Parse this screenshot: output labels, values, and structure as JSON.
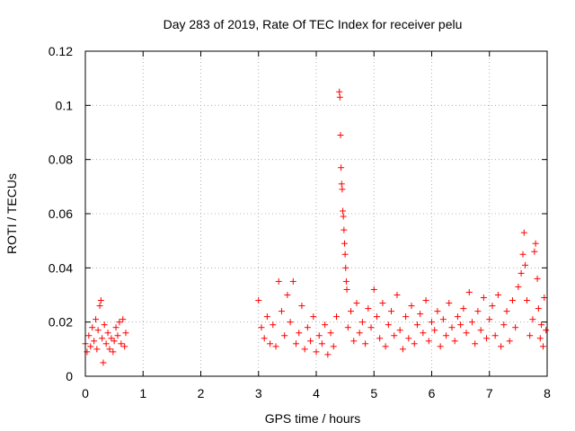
{
  "chart_data": {
    "type": "scatter",
    "title": "Day 283 of 2019, Rate Of TEC Index for receiver pelu",
    "xlabel": "GPS time / hours",
    "ylabel": "ROTI / TECUs",
    "xlim": [
      0,
      8
    ],
    "ylim": [
      0,
      0.12
    ],
    "xticks": [
      0,
      1,
      2,
      3,
      4,
      5,
      6,
      7,
      8
    ],
    "xtick_labels": [
      "0",
      "1",
      "2",
      "3",
      "4",
      "5",
      "6",
      "7",
      "8"
    ],
    "yticks": [
      0,
      0.02,
      0.04,
      0.06,
      0.08,
      0.1,
      0.12
    ],
    "ytick_labels": [
      "0",
      "0.02",
      "0.04",
      "0.06",
      "0.08",
      "0.1",
      "0.12"
    ],
    "grid": true,
    "marker": "+",
    "color": "#ff0000",
    "series": [
      {
        "name": "ROTI",
        "points": [
          [
            0.0,
            0.012
          ],
          [
            0.03,
            0.009
          ],
          [
            0.06,
            0.015
          ],
          [
            0.09,
            0.011
          ],
          [
            0.12,
            0.018
          ],
          [
            0.15,
            0.013
          ],
          [
            0.18,
            0.021
          ],
          [
            0.2,
            0.01
          ],
          [
            0.22,
            0.017
          ],
          [
            0.25,
            0.026
          ],
          [
            0.27,
            0.028
          ],
          [
            0.29,
            0.014
          ],
          [
            0.31,
            0.005
          ],
          [
            0.33,
            0.019
          ],
          [
            0.36,
            0.012
          ],
          [
            0.39,
            0.016
          ],
          [
            0.42,
            0.01
          ],
          [
            0.45,
            0.014
          ],
          [
            0.48,
            0.009
          ],
          [
            0.5,
            0.013
          ],
          [
            0.53,
            0.018
          ],
          [
            0.56,
            0.015
          ],
          [
            0.59,
            0.02
          ],
          [
            0.62,
            0.012
          ],
          [
            0.65,
            0.021
          ],
          [
            0.68,
            0.011
          ],
          [
            0.7,
            0.016
          ],
          [
            3.0,
            0.028
          ],
          [
            3.05,
            0.018
          ],
          [
            3.1,
            0.014
          ],
          [
            3.15,
            0.022
          ],
          [
            3.2,
            0.012
          ],
          [
            3.25,
            0.019
          ],
          [
            3.3,
            0.011
          ],
          [
            3.35,
            0.035
          ],
          [
            3.4,
            0.024
          ],
          [
            3.45,
            0.015
          ],
          [
            3.5,
            0.03
          ],
          [
            3.55,
            0.02
          ],
          [
            3.6,
            0.035
          ],
          [
            3.65,
            0.012
          ],
          [
            3.7,
            0.016
          ],
          [
            3.75,
            0.026
          ],
          [
            3.8,
            0.01
          ],
          [
            3.85,
            0.018
          ],
          [
            3.9,
            0.013
          ],
          [
            3.95,
            0.022
          ],
          [
            4.0,
            0.009
          ],
          [
            4.05,
            0.015
          ],
          [
            4.1,
            0.012
          ],
          [
            4.15,
            0.019
          ],
          [
            4.2,
            0.008
          ],
          [
            4.25,
            0.016
          ],
          [
            4.3,
            0.011
          ],
          [
            4.35,
            0.022
          ],
          [
            4.4,
            0.105
          ],
          [
            4.41,
            0.103
          ],
          [
            4.42,
            0.089
          ],
          [
            4.43,
            0.077
          ],
          [
            4.44,
            0.071
          ],
          [
            4.45,
            0.069
          ],
          [
            4.46,
            0.061
          ],
          [
            4.47,
            0.059
          ],
          [
            4.48,
            0.054
          ],
          [
            4.49,
            0.049
          ],
          [
            4.5,
            0.045
          ],
          [
            4.51,
            0.04
          ],
          [
            4.52,
            0.035
          ],
          [
            4.53,
            0.032
          ],
          [
            4.55,
            0.018
          ],
          [
            4.6,
            0.024
          ],
          [
            4.65,
            0.013
          ],
          [
            4.7,
            0.027
          ],
          [
            4.75,
            0.016
          ],
          [
            4.8,
            0.02
          ],
          [
            4.85,
            0.012
          ],
          [
            4.9,
            0.025
          ],
          [
            4.95,
            0.018
          ],
          [
            5.0,
            0.032
          ],
          [
            5.05,
            0.022
          ],
          [
            5.1,
            0.014
          ],
          [
            5.15,
            0.027
          ],
          [
            5.2,
            0.011
          ],
          [
            5.25,
            0.019
          ],
          [
            5.3,
            0.024
          ],
          [
            5.35,
            0.015
          ],
          [
            5.4,
            0.03
          ],
          [
            5.45,
            0.017
          ],
          [
            5.5,
            0.01
          ],
          [
            5.55,
            0.022
          ],
          [
            5.6,
            0.014
          ],
          [
            5.65,
            0.026
          ],
          [
            5.7,
            0.012
          ],
          [
            5.75,
            0.019
          ],
          [
            5.8,
            0.023
          ],
          [
            5.85,
            0.016
          ],
          [
            5.9,
            0.028
          ],
          [
            5.95,
            0.013
          ],
          [
            6.0,
            0.02
          ],
          [
            6.05,
            0.017
          ],
          [
            6.1,
            0.024
          ],
          [
            6.15,
            0.011
          ],
          [
            6.2,
            0.021
          ],
          [
            6.25,
            0.015
          ],
          [
            6.3,
            0.027
          ],
          [
            6.35,
            0.018
          ],
          [
            6.4,
            0.013
          ],
          [
            6.45,
            0.022
          ],
          [
            6.5,
            0.019
          ],
          [
            6.55,
            0.025
          ],
          [
            6.6,
            0.016
          ],
          [
            6.65,
            0.031
          ],
          [
            6.7,
            0.02
          ],
          [
            6.75,
            0.012
          ],
          [
            6.8,
            0.024
          ],
          [
            6.85,
            0.017
          ],
          [
            6.9,
            0.029
          ],
          [
            6.95,
            0.014
          ],
          [
            7.0,
            0.021
          ],
          [
            7.05,
            0.026
          ],
          [
            7.1,
            0.015
          ],
          [
            7.15,
            0.03
          ],
          [
            7.2,
            0.011
          ],
          [
            7.25,
            0.019
          ],
          [
            7.3,
            0.024
          ],
          [
            7.35,
            0.013
          ],
          [
            7.4,
            0.028
          ],
          [
            7.45,
            0.018
          ],
          [
            7.5,
            0.033
          ],
          [
            7.55,
            0.038
          ],
          [
            7.58,
            0.045
          ],
          [
            7.6,
            0.053
          ],
          [
            7.62,
            0.041
          ],
          [
            7.65,
            0.028
          ],
          [
            7.7,
            0.015
          ],
          [
            7.75,
            0.021
          ],
          [
            7.78,
            0.046
          ],
          [
            7.8,
            0.049
          ],
          [
            7.83,
            0.036
          ],
          [
            7.85,
            0.025
          ],
          [
            7.88,
            0.014
          ],
          [
            7.9,
            0.019
          ],
          [
            7.93,
            0.011
          ],
          [
            7.95,
            0.029
          ],
          [
            7.98,
            0.017
          ]
        ]
      }
    ]
  }
}
